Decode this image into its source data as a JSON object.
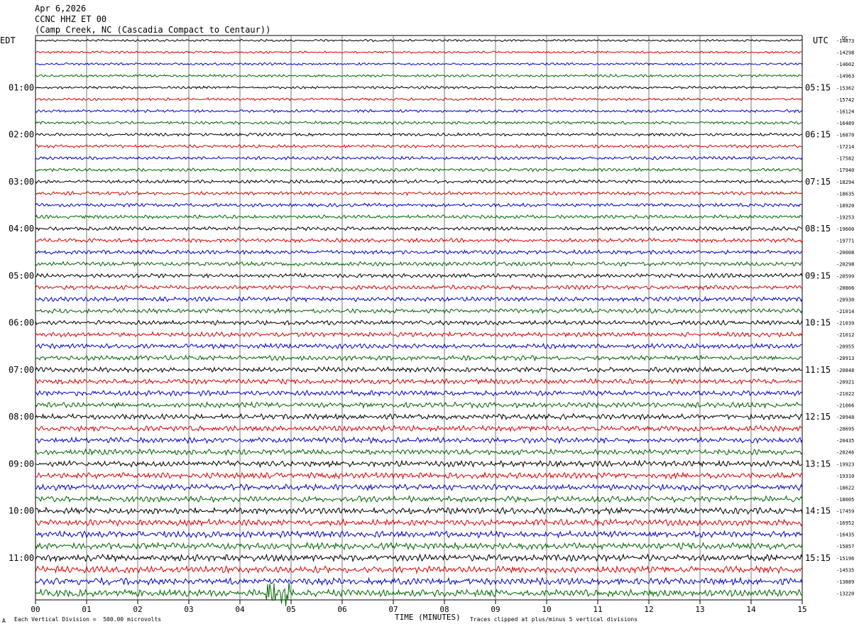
{
  "header": {
    "date": "Apr 6,2026",
    "station": "CCNC HHZ ET 00",
    "location": "(Camp Creek, NC (Cascadia Compact to Centaur))"
  },
  "left_tz": "EDT",
  "right_tz": "UTC",
  "right_unit": "DC",
  "footer": {
    "scale_note": "Each Vertical Division =  500.00 microvolts",
    "clip_note": "Traces clipped at plus/minus 5 vertical divisions",
    "corner_mark": "A"
  },
  "chart_data": {
    "type": "line",
    "xlabel": "TIME (MINUTES)",
    "x_ticks": [
      "00",
      "01",
      "02",
      "03",
      "04",
      "05",
      "06",
      "07",
      "08",
      "09",
      "10",
      "11",
      "12",
      "13",
      "14",
      "15"
    ],
    "xlim": [
      0,
      15
    ],
    "left_hour_labels": [
      "01:00",
      "02:00",
      "03:00",
      "04:00",
      "05:00",
      "06:00",
      "07:00",
      "08:00",
      "09:00",
      "10:00",
      "11:00"
    ],
    "right_hour_labels": [
      "05:15",
      "06:15",
      "07:15",
      "08:15",
      "09:15",
      "10:15",
      "11:15",
      "12:15",
      "13:15",
      "14:15",
      "15:15"
    ],
    "trace_colors": [
      "#000000",
      "#dd0000",
      "#0000cc",
      "#006600"
    ],
    "dc_offsets": [
      -14873,
      -14298,
      -14602,
      -14963,
      -15362,
      -15742,
      -16124,
      -16489,
      -16870,
      -17214,
      -17582,
      -17940,
      -18294,
      -18635,
      -18920,
      -19253,
      -19600,
      -19771,
      -20008,
      -20298,
      -20599,
      -20806,
      -20930,
      -21014,
      -21039,
      -21012,
      -20955,
      -20913,
      -20848,
      -20921,
      -21022,
      -21066,
      -20948,
      -20695,
      -20435,
      -20246,
      -19923,
      -19310,
      -18622,
      -18005,
      -17459,
      -16952,
      -16435,
      -15857,
      -15196,
      -14535,
      -13889,
      -13220
    ],
    "grid": true
  }
}
